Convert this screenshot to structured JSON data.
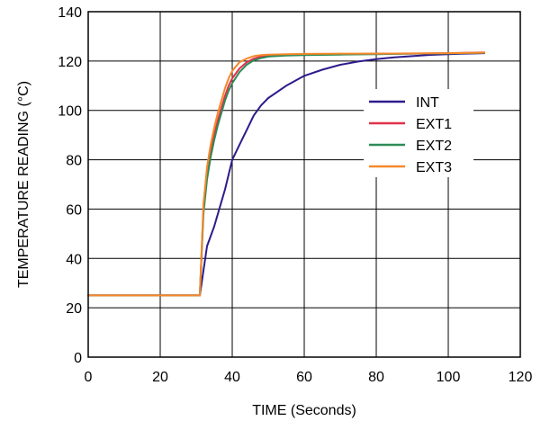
{
  "chart_data": {
    "type": "line",
    "title": "",
    "xlabel": "TIME (Seconds)",
    "ylabel": "TEMPERATURE READING (°C)",
    "xlim": [
      0,
      120
    ],
    "ylim": [
      0,
      140
    ],
    "xticks": [
      0,
      20,
      40,
      60,
      80,
      100,
      120
    ],
    "yticks": [
      0,
      20,
      40,
      60,
      80,
      100,
      120,
      140
    ],
    "xtick_labels": [
      "0",
      "20",
      "40",
      "60",
      "80",
      "100",
      "120"
    ],
    "ytick_labels": [
      "0",
      "20",
      "40",
      "60",
      "80",
      "100",
      "120",
      "140"
    ],
    "grid": true,
    "legend_position": "center-right",
    "series": [
      {
        "name": "INT",
        "color": "#2e1a8c",
        "x": [
          0,
          10,
          20,
          31,
          32,
          33,
          34,
          35,
          36,
          37,
          38,
          39,
          40,
          42,
          44,
          46,
          48,
          50,
          55,
          60,
          65,
          70,
          75,
          80,
          85,
          90,
          95,
          100,
          105,
          110
        ],
        "y": [
          25,
          25,
          25,
          25,
          35,
          45,
          49,
          53,
          58,
          63,
          68,
          74,
          80,
          86,
          92,
          98,
          102,
          105,
          110,
          114,
          116.5,
          118.5,
          119.8,
          120.8,
          121.5,
          122,
          122.5,
          122.8,
          123,
          123.2
        ]
      },
      {
        "name": "EXT1",
        "color": "#e0314a",
        "x": [
          0,
          10,
          20,
          31,
          32,
          33,
          34,
          35,
          36,
          37,
          38,
          39,
          40,
          42,
          44,
          46,
          48,
          50,
          55,
          60,
          70,
          80,
          90,
          100,
          110
        ],
        "y": [
          25,
          25,
          25,
          25,
          60,
          74,
          83,
          90,
          96,
          101,
          106,
          110,
          113,
          117,
          119.5,
          121,
          121.8,
          122.2,
          122.5,
          122.6,
          122.8,
          123,
          123,
          123.2,
          123.5
        ]
      },
      {
        "name": "EXT2",
        "color": "#2e8b57",
        "x": [
          0,
          10,
          20,
          31,
          32,
          33,
          34,
          35,
          36,
          37,
          38,
          39,
          40,
          42,
          44,
          46,
          48,
          50,
          55,
          60,
          70,
          80,
          90,
          100,
          110
        ],
        "y": [
          25,
          25,
          25,
          25,
          58,
          72,
          81,
          88,
          94,
          99,
          104,
          108,
          111,
          115.5,
          118.5,
          120.3,
          121.2,
          121.8,
          122.2,
          122.4,
          122.6,
          122.8,
          123,
          123.1,
          123.3
        ]
      },
      {
        "name": "EXT3",
        "color": "#f5882a",
        "x": [
          0,
          10,
          20,
          31,
          32,
          33,
          34,
          35,
          36,
          37,
          38,
          39,
          40,
          42,
          44,
          46,
          48,
          50,
          55,
          60,
          70,
          80,
          90,
          100,
          110
        ],
        "y": [
          25,
          25,
          25,
          25,
          62,
          77,
          86,
          93,
          99,
          104,
          109,
          113,
          116,
          119.5,
          121,
          122,
          122.4,
          122.6,
          122.8,
          122.9,
          123,
          123,
          123.1,
          123.2,
          123.4
        ]
      }
    ]
  }
}
